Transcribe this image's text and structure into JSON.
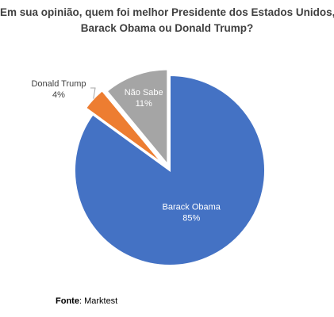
{
  "title_line1": "Em sua opinião, quem foi melhor Presidente dos Estados Unidos,",
  "title_line2": "Barack Obama ou Donald Trump?",
  "source_label": "Fonte",
  "source_value": ": Marktest",
  "chart_data": {
    "type": "pie",
    "title": "Em sua opinião, quem foi melhor Presidente dos Estados Unidos, Barack Obama ou Donald Trump?",
    "categories": [
      "Barack Obama",
      "Donald Trump",
      "Não Sabe"
    ],
    "values": [
      85,
      4,
      11
    ],
    "labels": [
      "85%",
      "4%",
      "11%"
    ],
    "colors": [
      "#4472C4",
      "#ED7D31",
      "#A5A5A5"
    ],
    "exploded": true
  }
}
